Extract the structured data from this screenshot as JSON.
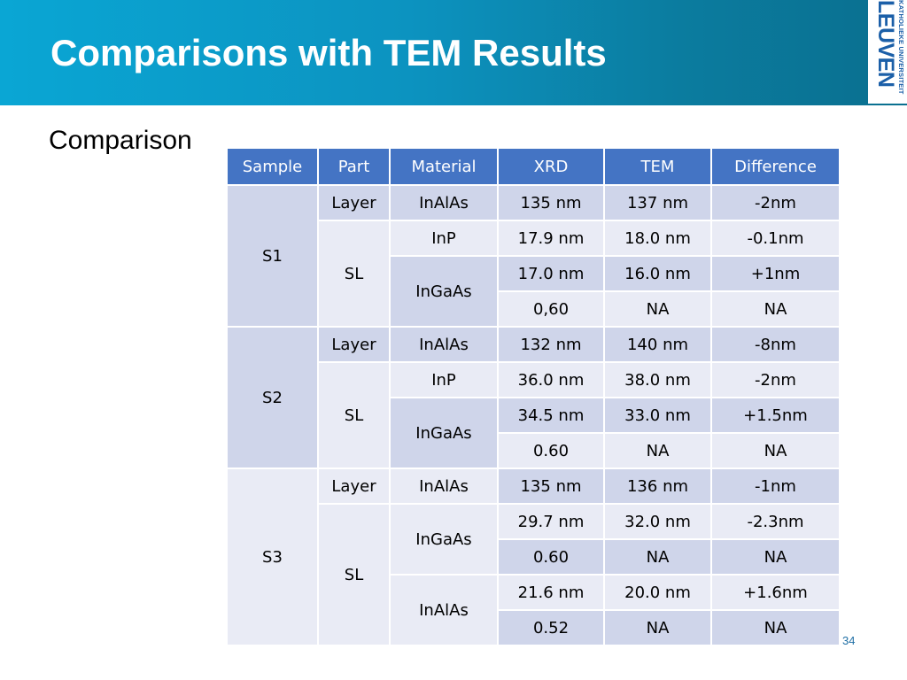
{
  "title": "Comparisons with TEM Results",
  "logo": {
    "small": "KATHOLIEKE UNIVERSITEIT",
    "big": "LEUVEN"
  },
  "subtitle": "Comparison",
  "table": {
    "headers": [
      "Sample",
      "Part",
      "Material",
      "XRD",
      "TEM",
      "Difference"
    ],
    "samples": [
      {
        "name": "S1",
        "parts": [
          {
            "part": "Layer",
            "materials": [
              {
                "name": "InAlAs",
                "rows": [
                  [
                    "135 nm",
                    "137 nm",
                    "-2nm"
                  ]
                ]
              }
            ]
          },
          {
            "part": "SL",
            "materials": [
              {
                "name": "InP",
                "rows": [
                  [
                    "17.9 nm",
                    "18.0 nm",
                    "-0.1nm"
                  ]
                ]
              },
              {
                "name": "InGaAs",
                "rows": [
                  [
                    "17.0 nm",
                    "16.0 nm",
                    "+1nm"
                  ],
                  [
                    "0,60",
                    "NA",
                    "NA"
                  ]
                ]
              }
            ]
          }
        ]
      },
      {
        "name": "S2",
        "parts": [
          {
            "part": "Layer",
            "materials": [
              {
                "name": "InAlAs",
                "rows": [
                  [
                    "132 nm",
                    "140 nm",
                    "-8nm"
                  ]
                ]
              }
            ]
          },
          {
            "part": "SL",
            "materials": [
              {
                "name": "InP",
                "rows": [
                  [
                    "36.0 nm",
                    "38.0 nm",
                    "-2nm"
                  ]
                ]
              },
              {
                "name": "InGaAs",
                "rows": [
                  [
                    "34.5 nm",
                    "33.0 nm",
                    "+1.5nm"
                  ],
                  [
                    "0.60",
                    "NA",
                    "NA"
                  ]
                ]
              }
            ]
          }
        ]
      },
      {
        "name": "S3",
        "parts": [
          {
            "part": "Layer",
            "materials": [
              {
                "name": "InAlAs",
                "rows": [
                  [
                    "135 nm",
                    "136 nm",
                    "-1nm"
                  ]
                ]
              }
            ]
          },
          {
            "part": "SL",
            "materials": [
              {
                "name": "InGaAs",
                "rows": [
                  [
                    "29.7 nm",
                    "32.0 nm",
                    "-2.3nm"
                  ],
                  [
                    "0.60",
                    "NA",
                    "NA"
                  ]
                ]
              },
              {
                "name": "InAlAs",
                "rows": [
                  [
                    "21.6 nm",
                    "20.0 nm",
                    "+1.6nm"
                  ],
                  [
                    "0.52",
                    "NA",
                    "NA"
                  ]
                ]
              }
            ]
          }
        ]
      }
    ]
  },
  "page_number": "34",
  "colors": {
    "header_start": "#0aa6d4",
    "header_end": "#0a6f8f",
    "table_header": "#4474c4",
    "row_dark": "#cfd5ea",
    "row_light": "#e9ebf5"
  }
}
